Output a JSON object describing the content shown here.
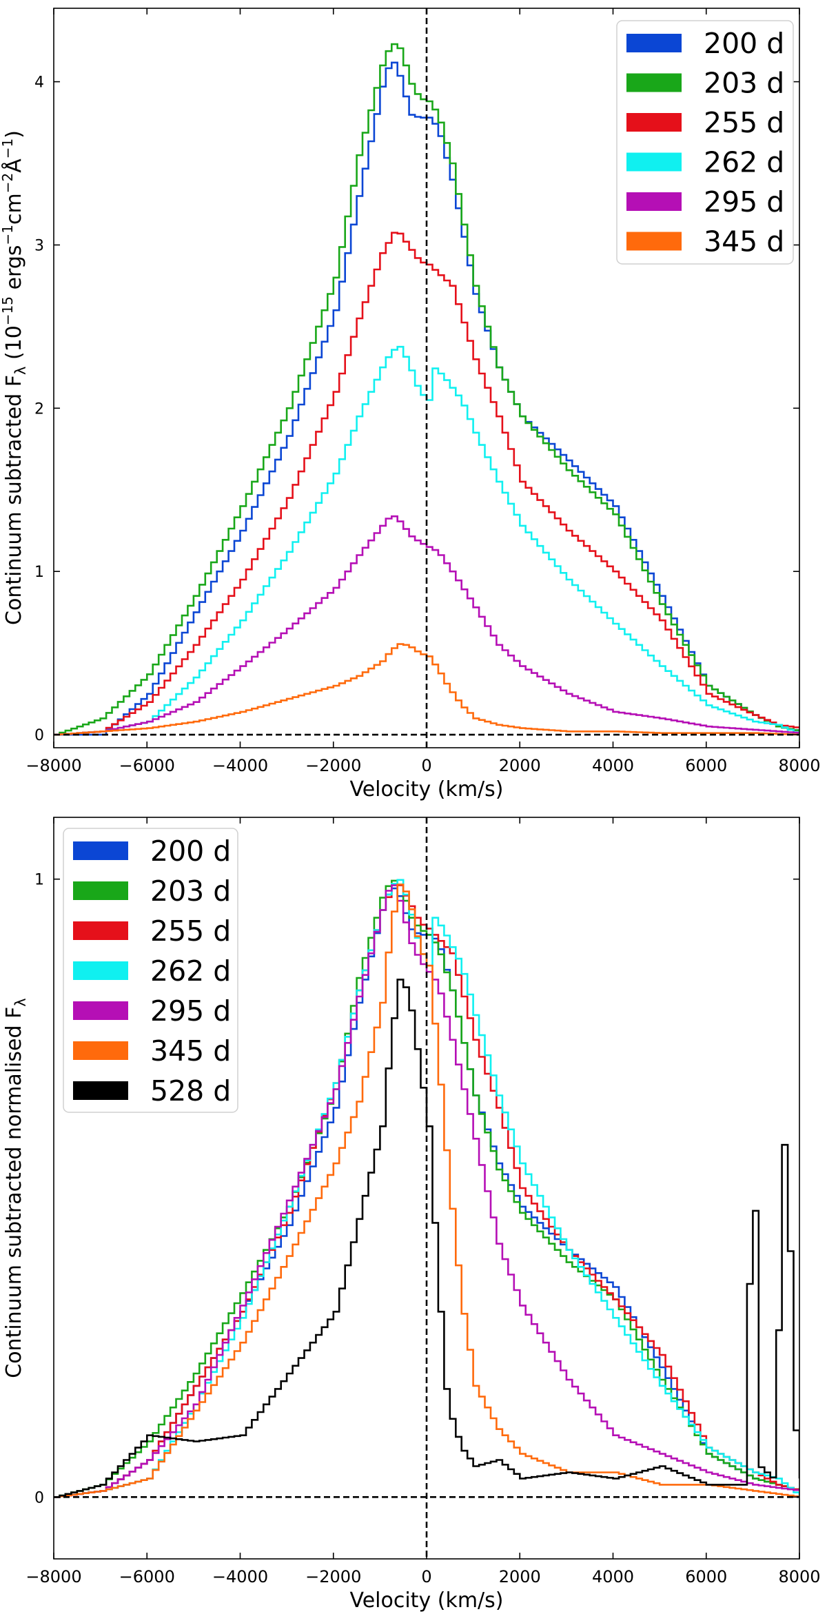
{
  "chart_data": [
    {
      "type": "line",
      "xlabel": "Velocity (km/s)",
      "ylabel": "Continuum subtracted F",
      "ylabel_subscript": "λ",
      "ylabel_units": "(10",
      "ylabel_units_exp": "−15",
      "ylabel_units_mid": " ergs",
      "ylabel_units_s": "−1",
      "ylabel_units_cm": "cm",
      "ylabel_units_cm_exp": "−2",
      "ylabel_units_A": "Å",
      "ylabel_units_A_exp": "−1",
      "ylabel_units_close": ")",
      "xlim": [
        -8000,
        8000
      ],
      "ylim": [
        -0.08,
        4.45
      ],
      "xticks": [
        -8000,
        -6000,
        -4000,
        -2000,
        0,
        2000,
        4000,
        6000,
        8000
      ],
      "xtick_labels": [
        "−8000",
        "−6000",
        "−4000",
        "−2000",
        "0",
        "2000",
        "4000",
        "6000",
        "8000"
      ],
      "yticks": [
        0,
        1,
        2,
        3,
        4
      ],
      "ytick_labels": [
        "0",
        "1",
        "2",
        "3",
        "4"
      ],
      "legend_position": "top-right",
      "grid": false,
      "reference_lines": {
        "horizontal_y": 0,
        "vertical_x": 0,
        "style": "dashed"
      },
      "series": [
        {
          "name": "200 d",
          "color": "#0b46d4",
          "x": [
            -8000,
            -7000,
            -6000,
            -5000,
            -4000,
            -3000,
            -2000,
            -1500,
            -1000,
            -800,
            -600,
            -400,
            -200,
            0,
            200,
            500,
            1000,
            1500,
            2000,
            3000,
            4000,
            5000,
            6000,
            7000,
            7500,
            8000
          ],
          "y": [
            0.0,
            0.0,
            0.25,
            0.75,
            1.25,
            1.83,
            2.6,
            3.3,
            3.97,
            4.15,
            4.02,
            3.8,
            3.78,
            3.78,
            3.72,
            3.4,
            2.7,
            2.25,
            1.95,
            1.68,
            1.4,
            0.85,
            0.3,
            0.12,
            0.05,
            0.02
          ]
        },
        {
          "name": "203 d",
          "color": "#19a719",
          "x": [
            -8000,
            -7000,
            -6000,
            -5000,
            -4000,
            -3000,
            -2000,
            -1500,
            -1000,
            -800,
            -600,
            -400,
            -200,
            0,
            200,
            500,
            1000,
            1500,
            2000,
            3000,
            4000,
            5000,
            6000,
            7000,
            7500,
            8000
          ],
          "y": [
            0.0,
            0.1,
            0.37,
            0.85,
            1.4,
            2.0,
            2.8,
            3.55,
            4.1,
            4.24,
            4.2,
            4.0,
            3.9,
            3.88,
            3.8,
            3.5,
            2.75,
            2.25,
            1.95,
            1.62,
            1.35,
            0.8,
            0.3,
            0.12,
            0.05,
            0.02
          ]
        },
        {
          "name": "255 d",
          "color": "#e5101a",
          "x": [
            -8000,
            -7000,
            -6000,
            -5000,
            -4000,
            -3000,
            -2000,
            -1500,
            -1000,
            -700,
            -400,
            -200,
            0,
            500,
            1000,
            1500,
            2000,
            3000,
            4000,
            5000,
            6000,
            7000,
            7500,
            8000
          ],
          "y": [
            0.0,
            0.02,
            0.2,
            0.55,
            0.95,
            1.45,
            2.1,
            2.55,
            2.95,
            3.1,
            2.98,
            2.9,
            2.88,
            2.75,
            2.3,
            1.95,
            1.55,
            1.25,
            1.0,
            0.7,
            0.25,
            0.12,
            0.06,
            0.04
          ]
        },
        {
          "name": "262 d",
          "color": "#10f0f0",
          "x": [
            -8000,
            -7000,
            -6000,
            -5000,
            -4000,
            -3000,
            -2000,
            -1500,
            -1000,
            -800,
            -600,
            -400,
            -200,
            0,
            100,
            300,
            700,
            1000,
            1500,
            2000,
            3000,
            4000,
            5000,
            6000,
            7000,
            7500,
            8000
          ],
          "y": [
            0.0,
            0.02,
            0.08,
            0.35,
            0.7,
            1.12,
            1.6,
            1.95,
            2.25,
            2.35,
            2.38,
            2.25,
            2.1,
            2.05,
            2.25,
            2.2,
            2.05,
            1.85,
            1.55,
            1.28,
            0.95,
            0.68,
            0.42,
            0.18,
            0.08,
            0.06,
            0.0
          ]
        },
        {
          "name": "295 d",
          "color": "#b50fb5",
          "x": [
            -8000,
            -7000,
            -6000,
            -5000,
            -4000,
            -3000,
            -2000,
            -1500,
            -1000,
            -800,
            -600,
            -400,
            -200,
            0,
            200,
            500,
            1000,
            1500,
            2000,
            3000,
            4000,
            5000,
            6000,
            7000,
            8000
          ],
          "y": [
            0.0,
            0.02,
            0.08,
            0.2,
            0.42,
            0.65,
            0.9,
            1.1,
            1.28,
            1.35,
            1.3,
            1.22,
            1.18,
            1.15,
            1.12,
            1.0,
            0.78,
            0.55,
            0.42,
            0.25,
            0.14,
            0.1,
            0.05,
            0.03,
            0.01
          ]
        },
        {
          "name": "345 d",
          "color": "#ff6a0c",
          "x": [
            -8000,
            -7000,
            -6000,
            -5000,
            -4000,
            -3000,
            -2000,
            -1500,
            -1000,
            -800,
            -600,
            -400,
            -200,
            0,
            200,
            400,
            700,
            1000,
            1500,
            2000,
            3000,
            4000,
            5000,
            6000,
            7000,
            8000
          ],
          "y": [
            0.0,
            0.02,
            0.04,
            0.08,
            0.14,
            0.22,
            0.3,
            0.36,
            0.45,
            0.52,
            0.56,
            0.54,
            0.5,
            0.48,
            0.4,
            0.3,
            0.18,
            0.1,
            0.06,
            0.04,
            0.02,
            0.02,
            0.01,
            0.01,
            0.01,
            0.0
          ]
        }
      ]
    },
    {
      "type": "line",
      "xlabel": "Velocity (km/s)",
      "ylabel": "Continuum subtracted normalised F",
      "ylabel_subscript": "λ",
      "xlim": [
        -8000,
        8000
      ],
      "ylim": [
        -0.1,
        1.1
      ],
      "xticks": [
        -8000,
        -6000,
        -4000,
        -2000,
        0,
        2000,
        4000,
        6000,
        8000
      ],
      "xtick_labels": [
        "−8000",
        "−6000",
        "−4000",
        "−2000",
        "0",
        "2000",
        "4000",
        "6000",
        "8000"
      ],
      "yticks": [
        0,
        1
      ],
      "ytick_labels": [
        "0",
        "1"
      ],
      "legend_position": "top-left",
      "grid": false,
      "reference_lines": {
        "horizontal_y": 0,
        "vertical_x": 0,
        "style": "dashed"
      },
      "series": [
        {
          "name": "200 d",
          "color": "#0b46d4",
          "x": [
            -8000,
            -7000,
            -6000,
            -5000,
            -4000,
            -3000,
            -2000,
            -1500,
            -1000,
            -800,
            -600,
            -400,
            -200,
            0,
            200,
            500,
            1000,
            1500,
            2000,
            3000,
            4000,
            5000,
            6000,
            7000,
            7500,
            8000
          ],
          "y": [
            0.0,
            0.01,
            0.06,
            0.18,
            0.3,
            0.44,
            0.63,
            0.8,
            0.95,
            0.99,
            0.97,
            0.92,
            0.91,
            0.91,
            0.9,
            0.82,
            0.65,
            0.54,
            0.47,
            0.4,
            0.34,
            0.21,
            0.07,
            0.03,
            0.02,
            0.01
          ]
        },
        {
          "name": "203 d",
          "color": "#19a719",
          "x": [
            -8000,
            -7000,
            -6000,
            -5000,
            -4000,
            -3000,
            -2000,
            -1500,
            -1000,
            -800,
            -600,
            -400,
            -200,
            0,
            200,
            500,
            1000,
            1500,
            2000,
            3000,
            4000,
            5000,
            6000,
            7000,
            7500,
            8000
          ],
          "y": [
            0.0,
            0.02,
            0.09,
            0.2,
            0.33,
            0.47,
            0.66,
            0.84,
            0.97,
            1.0,
            0.99,
            0.94,
            0.92,
            0.91,
            0.89,
            0.82,
            0.65,
            0.53,
            0.46,
            0.38,
            0.32,
            0.19,
            0.07,
            0.03,
            0.02,
            0.01
          ]
        },
        {
          "name": "255 d",
          "color": "#e5101a",
          "x": [
            -8000,
            -7000,
            -6000,
            -5000,
            -4000,
            -3000,
            -2000,
            -1500,
            -1000,
            -700,
            -400,
            -200,
            0,
            500,
            1000,
            1500,
            2000,
            3000,
            4000,
            5000,
            6000,
            7000,
            7500,
            8000
          ],
          "y": [
            0.0,
            0.01,
            0.06,
            0.18,
            0.3,
            0.46,
            0.67,
            0.82,
            0.95,
            1.0,
            0.96,
            0.93,
            0.92,
            0.88,
            0.74,
            0.63,
            0.5,
            0.4,
            0.32,
            0.23,
            0.08,
            0.04,
            0.02,
            0.01
          ]
        },
        {
          "name": "262 d",
          "color": "#10f0f0",
          "x": [
            -8000,
            -7000,
            -6000,
            -5000,
            -4000,
            -3000,
            -2000,
            -1500,
            -1000,
            -800,
            -600,
            -400,
            -200,
            0,
            100,
            300,
            700,
            1000,
            1500,
            2000,
            3000,
            4000,
            5000,
            6000,
            7000,
            7500,
            8000
          ],
          "y": [
            0.0,
            0.01,
            0.03,
            0.15,
            0.29,
            0.47,
            0.67,
            0.82,
            0.95,
            0.99,
            1.0,
            0.95,
            0.89,
            0.86,
            0.94,
            0.92,
            0.86,
            0.78,
            0.65,
            0.54,
            0.4,
            0.29,
            0.18,
            0.08,
            0.04,
            0.03,
            0.0
          ]
        },
        {
          "name": "295 d",
          "color": "#b50fb5",
          "x": [
            -8000,
            -7000,
            -6000,
            -5000,
            -4000,
            -3000,
            -2000,
            -1500,
            -1000,
            -800,
            -600,
            -400,
            -200,
            0,
            200,
            500,
            1000,
            1500,
            2000,
            3000,
            4000,
            5000,
            6000,
            7000,
            8000
          ],
          "y": [
            0.0,
            0.01,
            0.06,
            0.15,
            0.31,
            0.48,
            0.66,
            0.81,
            0.95,
            1.0,
            0.96,
            0.9,
            0.87,
            0.85,
            0.83,
            0.74,
            0.58,
            0.41,
            0.31,
            0.19,
            0.1,
            0.07,
            0.04,
            0.02,
            0.01
          ]
        },
        {
          "name": "345 d",
          "color": "#ff6a0c",
          "x": [
            -8000,
            -7000,
            -6000,
            -5000,
            -4000,
            -3000,
            -2000,
            -1500,
            -1000,
            -800,
            -600,
            -400,
            -200,
            0,
            200,
            400,
            700,
            1000,
            1500,
            2000,
            3000,
            4000,
            5000,
            6000,
            7000,
            8000
          ],
          "y": [
            0.0,
            0.01,
            0.03,
            0.14,
            0.25,
            0.39,
            0.54,
            0.64,
            0.8,
            0.93,
            1.0,
            0.96,
            0.89,
            0.86,
            0.71,
            0.54,
            0.32,
            0.18,
            0.11,
            0.07,
            0.04,
            0.04,
            0.02,
            0.02,
            0.01,
            0.0
          ]
        },
        {
          "name": "528 d",
          "color": "#000000",
          "x": [
            -8000,
            -7000,
            -6000,
            -5000,
            -4000,
            -3000,
            -2000,
            -1500,
            -1000,
            -800,
            -600,
            -400,
            -200,
            0,
            200,
            400,
            700,
            1000,
            1500,
            2000,
            3000,
            4000,
            5000,
            6000,
            6800,
            6950,
            7100,
            7400,
            7650,
            7900,
            8000
          ],
          "y": [
            0.0,
            0.02,
            0.1,
            0.09,
            0.1,
            0.2,
            0.3,
            0.45,
            0.6,
            0.75,
            0.85,
            0.8,
            0.7,
            0.6,
            0.35,
            0.15,
            0.08,
            0.05,
            0.06,
            0.03,
            0.04,
            0.03,
            0.05,
            0.02,
            0.02,
            0.67,
            0.05,
            0.03,
            0.63,
            0.05,
            0.03
          ]
        }
      ]
    }
  ]
}
